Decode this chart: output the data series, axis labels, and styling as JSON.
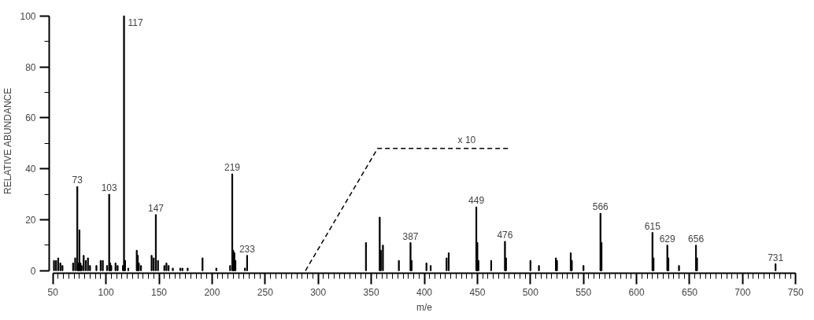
{
  "chart_data": {
    "type": "bar",
    "xlabel": "m/e",
    "ylabel": "RELATIVE ABUNDANCE",
    "xlim": [
      50,
      750
    ],
    "xticks": [
      50,
      100,
      150,
      200,
      250,
      300,
      350,
      400,
      450,
      500,
      550,
      600,
      650,
      700,
      750
    ],
    "ylim": [
      0,
      100
    ],
    "yticks": [
      0,
      20,
      40,
      60,
      80,
      100
    ],
    "grid": false,
    "series": [
      {
        "color": "#000000",
        "x": [
          51,
          53,
          55,
          57,
          59,
          69,
          71,
          73,
          74,
          75,
          76,
          77,
          79,
          81,
          83,
          85,
          91,
          95,
          97,
          101,
          103,
          104,
          105,
          109,
          111,
          116,
          117,
          118,
          121,
          129,
          130,
          131,
          133,
          143,
          145,
          147,
          149,
          155,
          157,
          159,
          163,
          170,
          172,
          177,
          191,
          204,
          217,
          219,
          220,
          221,
          222,
          231,
          233,
          345,
          358,
          359,
          361,
          376,
          387,
          388,
          402,
          406,
          421,
          423,
          449,
          450,
          451,
          463,
          476,
          477,
          500,
          508,
          524,
          525,
          538,
          539,
          550,
          566,
          567,
          615,
          616,
          629,
          630,
          640,
          656,
          657,
          731
        ],
        "values": [
          4,
          4,
          5,
          3,
          2,
          3,
          5,
          33,
          3,
          16,
          3,
          2,
          6,
          4,
          5,
          2,
          2,
          4,
          4,
          2,
          30,
          3,
          2,
          3,
          2,
          2,
          100,
          4,
          1,
          8,
          6,
          3,
          2,
          6,
          5,
          22,
          4,
          2,
          3,
          2,
          1,
          1,
          1,
          1,
          5,
          1,
          2,
          38,
          8,
          7,
          4,
          1,
          6,
          11,
          21,
          8,
          10,
          4,
          11,
          4,
          3,
          2,
          5,
          7,
          25,
          11,
          4,
          4,
          11.5,
          5,
          4,
          2,
          5,
          4,
          7,
          4,
          2,
          22.5,
          11,
          15,
          5,
          10,
          5,
          2,
          10,
          5,
          2.7
        ]
      },
      {
        "type": "line",
        "color": "#000000",
        "line_style": "dashed",
        "x": [
          288,
          356,
          479
        ],
        "values": [
          0,
          48,
          48
        ]
      }
    ],
    "annotations": [
      {
        "text": "73",
        "x": 73,
        "y": 33
      },
      {
        "text": "103",
        "x": 103,
        "y": 30
      },
      {
        "text": "117",
        "x": 117,
        "y": 100
      },
      {
        "text": "147",
        "x": 147,
        "y": 22
      },
      {
        "text": "219",
        "x": 219,
        "y": 38
      },
      {
        "text": "233",
        "x": 233,
        "y": 6
      },
      {
        "text": "x 10",
        "x": 440,
        "y": 48
      },
      {
        "text": "387",
        "x": 387,
        "y": 11
      },
      {
        "text": "449",
        "x": 449,
        "y": 25
      },
      {
        "text": "476",
        "x": 476,
        "y": 11.5
      },
      {
        "text": "566",
        "x": 566,
        "y": 22.5
      },
      {
        "text": "615",
        "x": 615,
        "y": 15
      },
      {
        "text": "629",
        "x": 629,
        "y": 10
      },
      {
        "text": "656",
        "x": 656,
        "y": 10
      },
      {
        "text": "731",
        "x": 731,
        "y": 2.7
      }
    ]
  }
}
